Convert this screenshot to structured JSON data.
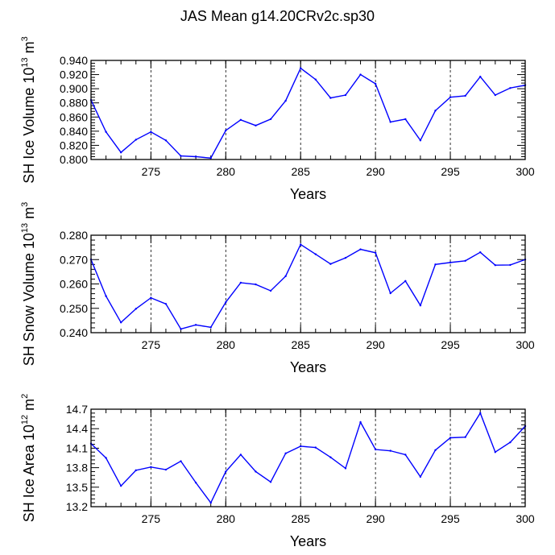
{
  "title": "JAS Mean g14.20CRv2c.sp30",
  "colors": {
    "line": "#0000ff",
    "axis": "#000000",
    "gridline": "#000000",
    "background": "#ffffff"
  },
  "chart_data": [
    {
      "type": "line",
      "xlabel": "Years",
      "ylabel": "SH Ice Volume 10",
      "ylabel_exp": "13",
      "ylabel_unit": " m",
      "ylabel_unit_exp": "3",
      "xlim": [
        271,
        300
      ],
      "ylim": [
        0.8,
        0.94
      ],
      "xticks": [
        275,
        280,
        285,
        290,
        295,
        300
      ],
      "yticks": [
        "0.800",
        "0.820",
        "0.840",
        "0.860",
        "0.880",
        "0.900",
        "0.920",
        "0.940"
      ],
      "vlines": [
        275,
        280,
        285,
        290,
        295
      ],
      "x": [
        271,
        272,
        273,
        274,
        275,
        276,
        277,
        278,
        279,
        280,
        281,
        282,
        283,
        284,
        285,
        286,
        287,
        288,
        289,
        290,
        291,
        292,
        293,
        294,
        295,
        296,
        297,
        298,
        299,
        300
      ],
      "y": [
        0.884,
        0.839,
        0.81,
        0.828,
        0.839,
        0.827,
        0.805,
        0.804,
        0.802,
        0.841,
        0.856,
        0.848,
        0.857,
        0.883,
        0.929,
        0.913,
        0.887,
        0.891,
        0.92,
        0.907,
        0.853,
        0.857,
        0.827,
        0.869,
        0.888,
        0.89,
        0.917,
        0.891,
        0.901,
        0.905
      ]
    },
    {
      "type": "line",
      "xlabel": "Years",
      "ylabel": "SH Snow Volume 10",
      "ylabel_exp": "13",
      "ylabel_unit": " m",
      "ylabel_unit_exp": "3",
      "xlim": [
        271,
        300
      ],
      "ylim": [
        0.24,
        0.28
      ],
      "xticks": [
        275,
        280,
        285,
        290,
        295,
        300
      ],
      "yticks": [
        "0.240",
        "0.250",
        "0.260",
        "0.270",
        "0.280"
      ],
      "vlines": [
        275,
        280,
        285,
        290,
        295
      ],
      "x": [
        271,
        272,
        273,
        274,
        275,
        276,
        277,
        278,
        279,
        280,
        281,
        282,
        283,
        284,
        285,
        286,
        287,
        288,
        289,
        290,
        291,
        292,
        293,
        294,
        295,
        296,
        297,
        298,
        299,
        300
      ],
      "y": [
        0.27,
        0.255,
        0.2442,
        0.2498,
        0.2543,
        0.2518,
        0.2415,
        0.2432,
        0.2422,
        0.2525,
        0.2605,
        0.2598,
        0.2572,
        0.2632,
        0.2762,
        0.2722,
        0.2682,
        0.2707,
        0.2742,
        0.2728,
        0.2562,
        0.2612,
        0.2512,
        0.268,
        0.2688,
        0.2695,
        0.273,
        0.2677,
        0.2678,
        0.27
      ]
    },
    {
      "type": "line",
      "xlabel": "Years",
      "ylabel": "SH Ice Area 10",
      "ylabel_exp": "12",
      "ylabel_unit": " m",
      "ylabel_unit_exp": "2",
      "xlim": [
        271,
        300
      ],
      "ylim": [
        13.2,
        14.7
      ],
      "xticks": [
        275,
        280,
        285,
        290,
        295,
        300
      ],
      "yticks": [
        "13.2",
        "13.5",
        "13.8",
        "14.1",
        "14.4",
        "14.7"
      ],
      "vlines": [
        275,
        280,
        285,
        290,
        295
      ],
      "x": [
        271,
        272,
        273,
        274,
        275,
        276,
        277,
        278,
        279,
        280,
        281,
        282,
        283,
        284,
        285,
        286,
        287,
        288,
        289,
        290,
        291,
        292,
        293,
        294,
        295,
        296,
        297,
        298,
        299,
        300
      ],
      "y": [
        14.17,
        13.95,
        13.52,
        13.76,
        13.81,
        13.77,
        13.9,
        13.57,
        13.26,
        13.74,
        14.0,
        13.74,
        13.58,
        14.02,
        14.13,
        14.11,
        13.96,
        13.79,
        14.5,
        14.08,
        14.06,
        14.0,
        13.66,
        14.07,
        14.26,
        14.27,
        14.64,
        14.04,
        14.19,
        14.44
      ]
    }
  ]
}
